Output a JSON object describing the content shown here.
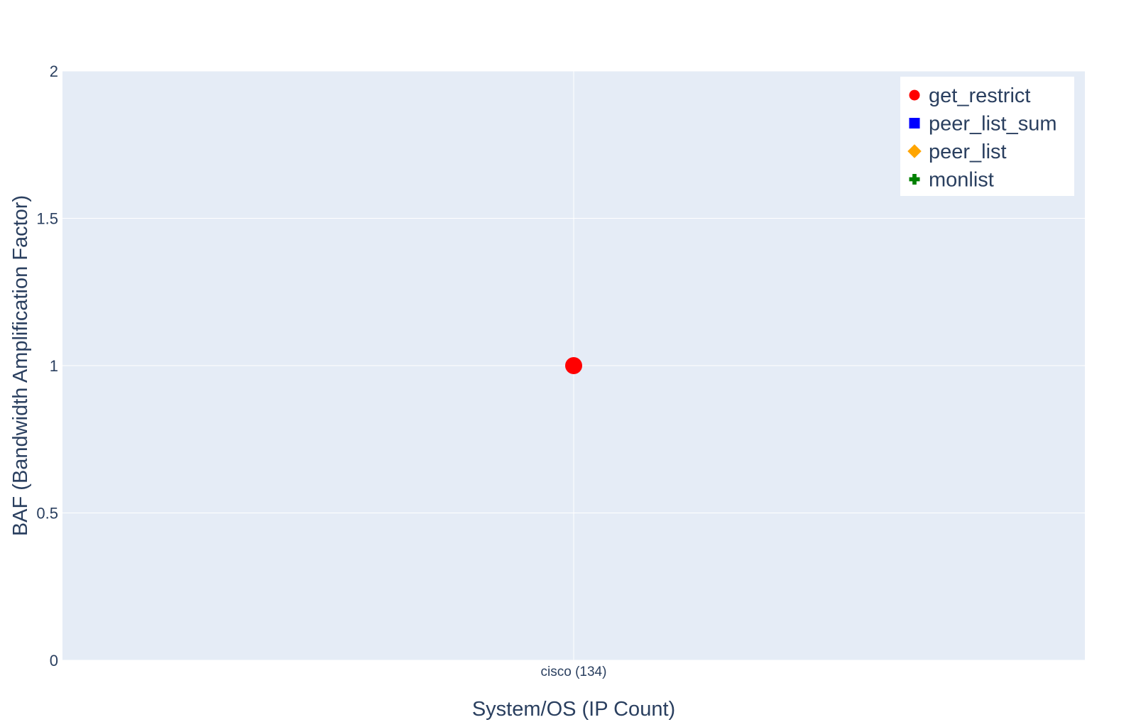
{
  "chart_data": {
    "type": "scatter",
    "xlabel": "System/OS (IP Count)",
    "ylabel": "BAF (Bandwidth Amplification Factor)",
    "categories": [
      "cisco (134)"
    ],
    "ylim": [
      0,
      2
    ],
    "yticks": [
      0,
      0.5,
      1,
      1.5,
      2
    ],
    "ytick_labels": [
      "0",
      "0.5",
      "1",
      "1.5",
      "2"
    ],
    "grid": true,
    "legend_position": "top-right",
    "plot_background": "#e5ecf6",
    "series": [
      {
        "name": "get_restrict",
        "symbol": "circle",
        "color": "#ff0000",
        "points": [
          {
            "x": "cisco (134)",
            "y": 1
          }
        ]
      },
      {
        "name": "peer_list_sum",
        "symbol": "square",
        "color": "#0000ff",
        "points": []
      },
      {
        "name": "peer_list",
        "symbol": "diamond",
        "color": "#ffa500",
        "points": []
      },
      {
        "name": "monlist",
        "symbol": "cross",
        "color": "#008000",
        "points": []
      }
    ]
  }
}
